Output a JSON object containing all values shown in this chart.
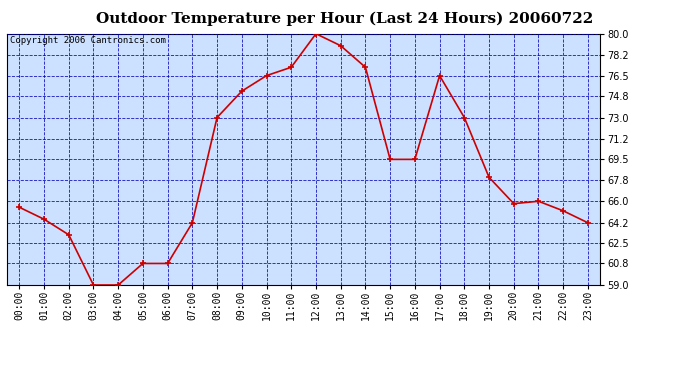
{
  "title": "Outdoor Temperature per Hour (Last 24 Hours) 20060722",
  "copyright_text": "Copyright 2006 Cantronics.com",
  "hours": [
    "00:00",
    "01:00",
    "02:00",
    "03:00",
    "04:00",
    "05:00",
    "06:00",
    "07:00",
    "08:00",
    "09:00",
    "10:00",
    "11:00",
    "12:00",
    "13:00",
    "14:00",
    "15:00",
    "16:00",
    "17:00",
    "18:00",
    "19:00",
    "20:00",
    "21:00",
    "22:00",
    "23:00"
  ],
  "temperatures": [
    65.5,
    64.5,
    63.2,
    59.0,
    59.0,
    60.8,
    60.8,
    64.2,
    73.0,
    75.2,
    76.5,
    77.2,
    80.0,
    79.0,
    77.2,
    69.5,
    69.5,
    76.5,
    73.0,
    68.0,
    65.8,
    66.0,
    65.2,
    64.2
  ],
  "line_color": "#cc0000",
  "marker_color": "#cc0000",
  "bg_color": "#cce0ff",
  "grid_color": "#0000bb",
  "border_color": "#000000",
  "ylim": [
    59.0,
    80.0
  ],
  "yticks": [
    59.0,
    60.8,
    62.5,
    64.2,
    66.0,
    67.8,
    69.5,
    71.2,
    73.0,
    74.8,
    76.5,
    78.2,
    80.0
  ],
  "title_fontsize": 11,
  "copyright_fontsize": 6.5,
  "tick_fontsize": 7,
  "fig_width": 6.9,
  "fig_height": 3.75,
  "dpi": 100
}
